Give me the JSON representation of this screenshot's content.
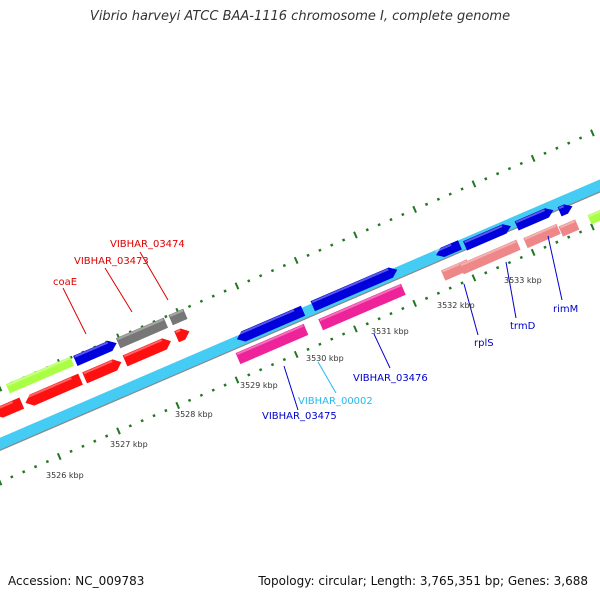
{
  "title": "Vibrio harveyi ATCC BAA-1116 chromosome I, complete genome",
  "accession": "Accession: NC_009783",
  "summary": "Topology: circular; Length: 3,765,351 bp; Genes: 3,688",
  "ruler": {
    "unit": "kbp",
    "labels": [
      "3526 kbp",
      "3527 kbp",
      "3528 kbp",
      "3529 kbp",
      "3530 kbp",
      "3531 kbp",
      "3532 kbp",
      "3533 kbp"
    ]
  },
  "gene_labels": [
    {
      "name": "VIBHAR_03474",
      "color": "#e00000"
    },
    {
      "name": "VIBHAR_03473",
      "color": "#e00000"
    },
    {
      "name": "coaE",
      "color": "#e00000"
    },
    {
      "name": "VIBHAR_00002",
      "color": "#22bbee"
    },
    {
      "name": "VIBHAR_03475",
      "color": "#0000cc"
    },
    {
      "name": "VIBHAR_03476",
      "color": "#0000cc"
    },
    {
      "name": "rplS",
      "color": "#0000cc"
    },
    {
      "name": "trmD",
      "color": "#0000cc"
    },
    {
      "name": "rimM",
      "color": "#0000cc"
    }
  ],
  "colors": {
    "backbone": "#888888",
    "reverse_track": "#44ccf4",
    "tick": "#227722",
    "forward_feature": "#0000dd",
    "reverse_feature": "#ff1010",
    "pseudo_feature": "#777777",
    "light_green": "#aaff44",
    "pink_feature": "#ee2299",
    "salmon_feature": "#ee8888"
  }
}
